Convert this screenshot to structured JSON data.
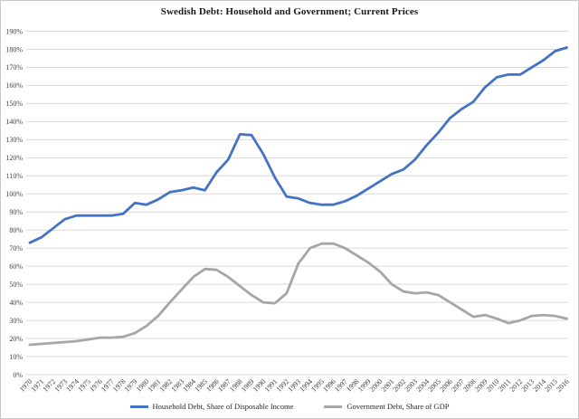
{
  "window": {
    "background_color": "#ffffff",
    "border_color": "#c9c9c9"
  },
  "chart_data": {
    "type": "line",
    "title": "Swedish Debt: Household and Government; Current Prices",
    "xlabel": "",
    "ylabel": "",
    "ylim": [
      0,
      190
    ],
    "ytick_step": 10,
    "ytick_suffix": "%",
    "grid": true,
    "gridline_color": "#d9d9d9",
    "axis_label_color": "#404040",
    "legend_position": "bottom",
    "x": [
      1970,
      1971,
      1972,
      1973,
      1974,
      1975,
      1976,
      1977,
      1978,
      1979,
      1980,
      1981,
      1982,
      1983,
      1984,
      1985,
      1986,
      1987,
      1988,
      1989,
      1990,
      1991,
      1992,
      1993,
      1994,
      1995,
      1996,
      1997,
      1998,
      1999,
      2000,
      2001,
      2002,
      2003,
      2004,
      2005,
      2006,
      2007,
      2008,
      2009,
      2010,
      2011,
      2012,
      2013,
      2014,
      2015,
      2016
    ],
    "series": [
      {
        "id": "household-debt-line",
        "name": "Household Debt, Share of Disposable Income",
        "color": "#4472C4",
        "values": [
          73,
          76,
          81,
          86,
          88,
          88,
          88,
          88,
          89,
          95,
          94,
          97,
          101,
          102,
          103.5,
          102,
          112,
          119,
          133,
          132.5,
          122,
          109,
          98.5,
          97.5,
          95,
          94,
          94,
          96,
          99,
          103,
          107,
          111,
          113.5,
          119,
          127,
          134,
          142,
          147,
          151,
          159,
          164.5,
          166,
          166,
          170,
          174,
          179,
          181
        ]
      },
      {
        "id": "government-debt-line",
        "name": "Government Debt, Share of GDP",
        "color": "#A6A6A6",
        "values": [
          16.5,
          17,
          17.5,
          18,
          18.5,
          19.5,
          20.5,
          20.5,
          21,
          23,
          27,
          32.5,
          40,
          47,
          54,
          58.5,
          58,
          54,
          49,
          44,
          40,
          39.5,
          45,
          61.5,
          70,
          72.5,
          72.5,
          70,
          66,
          62,
          57,
          50,
          46,
          45,
          45.5,
          44,
          40,
          36,
          32,
          33,
          31,
          28.5,
          30,
          32.5,
          33,
          32.5,
          31
        ]
      }
    ]
  }
}
